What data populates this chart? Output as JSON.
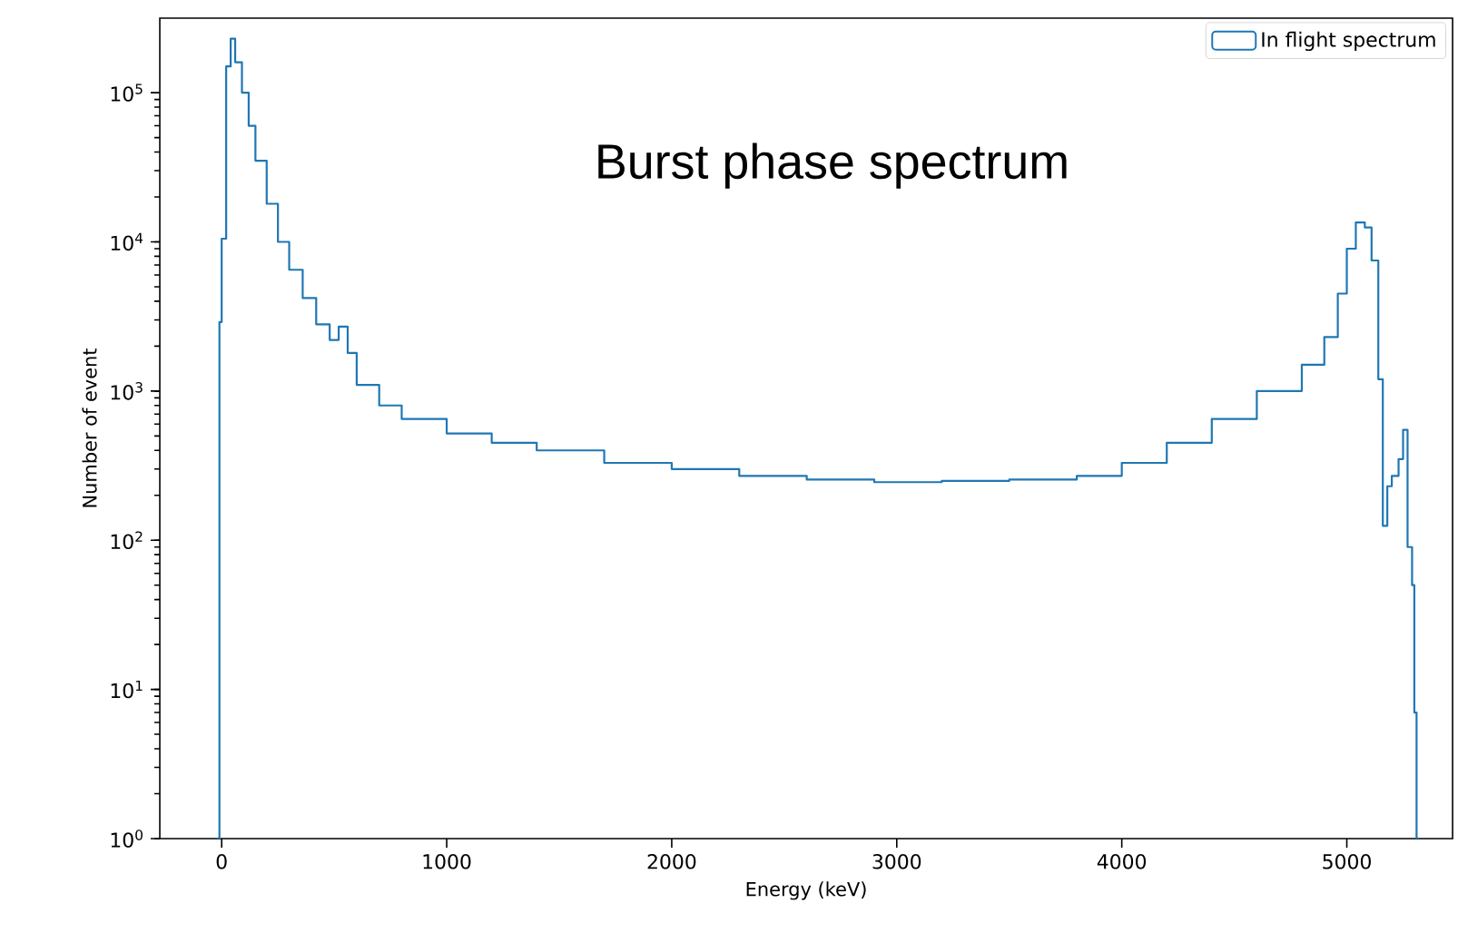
{
  "chart_data": {
    "type": "histogram",
    "title": "Burst phase spectrum",
    "xlabel": "Energy (keV)",
    "ylabel": "Number of event",
    "bins": [
      -20,
      -10,
      0,
      20,
      40,
      60,
      90,
      120,
      150,
      200,
      250,
      300,
      360,
      420,
      480,
      520,
      560,
      600,
      700,
      800,
      1000,
      1200,
      1400,
      1700,
      2000,
      2300,
      2600,
      2900,
      3200,
      3500,
      3800,
      4000,
      4200,
      4400,
      4600,
      4800,
      4900,
      4960,
      5000,
      5040,
      5080,
      5110,
      5140,
      5160,
      5180,
      5200,
      5230,
      5250,
      5270,
      5290,
      5300,
      5310,
      5320
    ],
    "series": [
      {
        "name": "In flight spectrum",
        "color": "#1f77b4",
        "values": [
          1,
          2900,
          10500,
          150000,
          230000,
          160000,
          100000,
          60000,
          35000,
          18000,
          10000,
          6500,
          4200,
          2800,
          2200,
          2700,
          1800,
          1100,
          800,
          650,
          520,
          450,
          400,
          330,
          300,
          270,
          255,
          245,
          250,
          255,
          270,
          330,
          450,
          650,
          1000,
          1500,
          2300,
          4500,
          9000,
          13500,
          12500,
          7500,
          1200,
          125,
          230,
          270,
          350,
          550,
          90,
          50,
          7,
          1
        ]
      }
    ],
    "xlim": [
      -275,
      5470
    ],
    "ylim": [
      1,
      316000
    ],
    "xticks": [
      0,
      1000,
      2000,
      3000,
      4000,
      5000
    ],
    "yticks": [
      {
        "value": 1,
        "label": "10$^{0}$"
      },
      {
        "value": 10,
        "label": "10$^{1}$"
      },
      {
        "value": 100,
        "label": "10$^{2}$"
      },
      {
        "value": 1000,
        "label": "10$^{3}$"
      },
      {
        "value": 10000,
        "label": "10$^{4}$"
      },
      {
        "value": 100000,
        "label": "10$^{5}$"
      }
    ],
    "log": "y",
    "grid": false,
    "legend": "top right"
  }
}
